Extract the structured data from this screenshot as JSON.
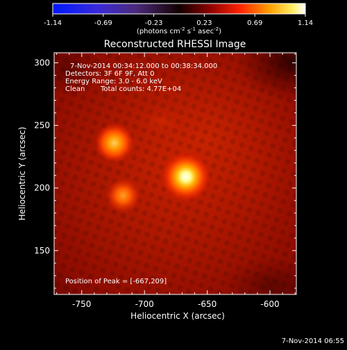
{
  "colorbar": {
    "ticks": [
      "-1.14",
      "-0.69",
      "-0.23",
      "0.23",
      "0.69",
      "1.14"
    ],
    "units": "(photons cm",
    "units_exp1": "-2",
    "units_mid": " s",
    "units_exp2": "-1",
    "units_mid2": " asec",
    "units_exp3": "-2",
    "units_end": ")"
  },
  "title": "Reconstructed RHESSI Image",
  "annotations": {
    "time_range": "7-Nov-2014 00:34:12.000 to 00:38:34.000",
    "detectors": "Detectors: 3F 6F 9F, Att 0",
    "energy": "Energy Range: 3.0 - 6.0 keV",
    "clean_label": "Clean",
    "total_counts": "Total counts: 4.77E+04",
    "peak": "Position of Peak = [-667,209]"
  },
  "axes": {
    "xlabel": "Heliocentric X (arcsec)",
    "ylabel": "Heliocentric Y (arcsec)",
    "xticks": [
      "-750",
      "-700",
      "-650",
      "-600"
    ],
    "yticks": [
      "300",
      "250",
      "200",
      "150"
    ]
  },
  "timestamp": "7-Nov-2014 06:55",
  "sources": [
    {
      "x": -667,
      "y": 209,
      "peak": 1.14
    },
    {
      "x": -724,
      "y": 236,
      "peak": 0.75
    },
    {
      "x": -717,
      "y": 194,
      "peak": 0.6
    }
  ]
}
